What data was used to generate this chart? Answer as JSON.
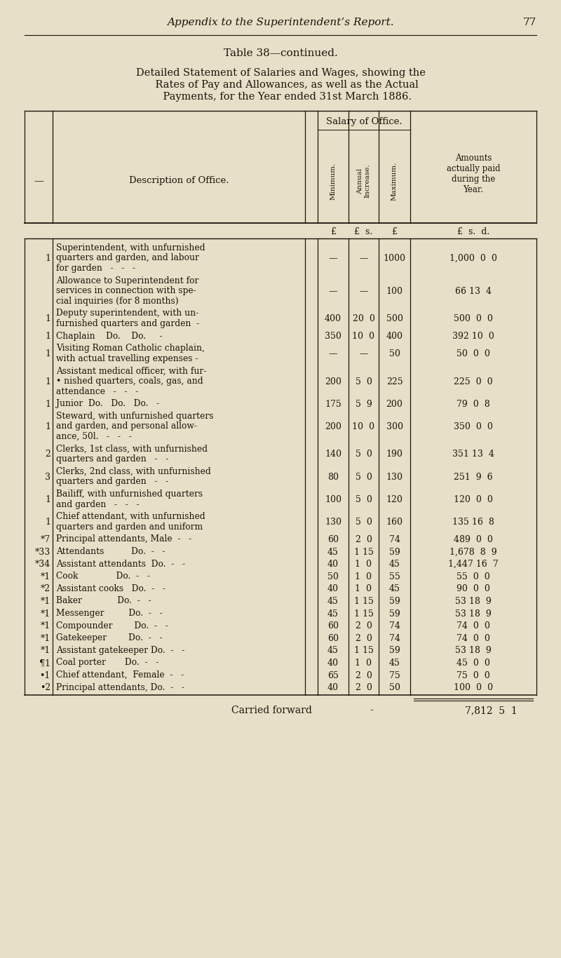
{
  "page_header_italic": "Appendix to the Superintendent’s Report.",
  "page_number": "77",
  "table_label": "Table 38—continued.",
  "subtitle_lines": [
    "Detailed Statement of Salaries and Wages, showing the",
    "    Rates of Pay and Allowances, as well as the Actual",
    "    Payments, for the Year ended 31st March 1886."
  ],
  "rows": [
    {
      "num": "1",
      "desc": [
        "Superintendent, with unfurnished",
        "quarters and garden, and labour",
        "for garden   -   -   -"
      ],
      "min": "—",
      "ann": "—",
      "max": "1000",
      "paid": "1,000  0  0"
    },
    {
      "num": "",
      "desc": [
        "Allowance to Superintendent for",
        "services in connection with spe-",
        "cial inquiries (for 8 months)"
      ],
      "min": "—",
      "ann": "—",
      "max": "100",
      "paid": "66 13  4"
    },
    {
      "num": "1",
      "desc": [
        "Deputy superintendent, with un-",
        "furnished quarters and garden  -"
      ],
      "min": "400",
      "ann": "20  0",
      "max": "500",
      "paid": "500  0  0"
    },
    {
      "num": "1",
      "desc": [
        "Chaplain    Do.    Do.     -"
      ],
      "min": "350",
      "ann": "10  0",
      "max": "400",
      "paid": "392 10  0"
    },
    {
      "num": "1",
      "desc": [
        "Visiting Roman Catholic chaplain,",
        "with actual travelling expenses -"
      ],
      "min": "—",
      "ann": "—",
      "max": "50",
      "paid": "50  0  0"
    },
    {
      "num": "1",
      "desc": [
        "Assistant medical officer, with fur-",
        "• nished quarters, coals, gas, and",
        "attendance   -   -   -"
      ],
      "min": "200",
      "ann": "5  0",
      "max": "225",
      "paid": "225  0  0"
    },
    {
      "num": "1",
      "desc": [
        "Junior  Do.   Do.   Do.   -"
      ],
      "min": "175",
      "ann": "5  9",
      "max": "200",
      "paid": "79  0  8"
    },
    {
      "num": "1",
      "desc": [
        "Steward, with unfurnished quarters",
        "and garden, and personal allow-",
        "ance, 50l.   -   -   -"
      ],
      "min": "200",
      "ann": "10  0",
      "max": "300",
      "paid": "350  0  0"
    },
    {
      "num": "2",
      "desc": [
        "Clerks, 1st class, with unfurnished",
        "quarters and garden   -   -"
      ],
      "min": "140",
      "ann": "5  0",
      "max": "190",
      "paid": "351 13  4"
    },
    {
      "num": "3",
      "desc": [
        "Clerks, 2nd class, with unfurnished",
        "quarters and garden   -   -"
      ],
      "min": "80",
      "ann": "5  0",
      "max": "130",
      "paid": "251  9  6"
    },
    {
      "num": "1",
      "desc": [
        "Bailiff, with unfurnished quarters",
        "and garden   -   -   -"
      ],
      "min": "100",
      "ann": "5  0",
      "max": "120",
      "paid": "120  0  0"
    },
    {
      "num": "1",
      "desc": [
        "Chief attendant, with unfurnished",
        "quarters and garden and uniform"
      ],
      "min": "130",
      "ann": "5  0",
      "max": "160",
      "paid": "135 16  8"
    },
    {
      "num": "*7",
      "desc": [
        "Principal attendants, Male  -   -"
      ],
      "min": "60",
      "ann": "2  0",
      "max": "74",
      "paid": "489  0  0"
    },
    {
      "num": "*33",
      "desc": [
        "Attendants          Do.  -   -"
      ],
      "min": "45",
      "ann": "1 15",
      "max": "59",
      "paid": "1,678  8  9"
    },
    {
      "num": "*34",
      "desc": [
        "Assistant attendants  Do.  -   -"
      ],
      "min": "40",
      "ann": "1  0",
      "max": "45",
      "paid": "1,447 16  7"
    },
    {
      "num": "*1",
      "desc": [
        "Cook              Do.  -   -"
      ],
      "min": "50",
      "ann": "1  0",
      "max": "55",
      "paid": "55  0  0"
    },
    {
      "num": "*2",
      "desc": [
        "Assistant cooks   Do.  -   -"
      ],
      "min": "40",
      "ann": "1  0",
      "max": "45",
      "paid": "90  0  0"
    },
    {
      "num": "*1",
      "desc": [
        "Baker             Do.  -   -"
      ],
      "min": "45",
      "ann": "1 15",
      "max": "59",
      "paid": "53 18  9"
    },
    {
      "num": "*1",
      "desc": [
        "Messenger         Do.  -   -"
      ],
      "min": "45",
      "ann": "1 15",
      "max": "59",
      "paid": "53 18  9"
    },
    {
      "num": "*1",
      "desc": [
        "Compounder        Do.  -   -"
      ],
      "min": "60",
      "ann": "2  0",
      "max": "74",
      "paid": "74  0  0"
    },
    {
      "num": "*1",
      "desc": [
        "Gatekeeper        Do.  -   -"
      ],
      "min": "60",
      "ann": "2  0",
      "max": "74",
      "paid": "74  0  0"
    },
    {
      "num": "*1",
      "desc": [
        "Assistant gatekeeper Do.  -   -"
      ],
      "min": "45",
      "ann": "1 15",
      "max": "59",
      "paid": "53 18  9"
    },
    {
      "num": "¶1",
      "desc": [
        "Coal porter       Do.  -   -"
      ],
      "min": "40",
      "ann": "1  0",
      "max": "45",
      "paid": "45  0  0"
    },
    {
      "num": "•1",
      "desc": [
        "Chief attendant,  Female  -   -"
      ],
      "min": "65",
      "ann": "2  0",
      "max": "75",
      "paid": "75  0  0"
    },
    {
      "num": "•2",
      "desc": [
        "Principal attendants, Do.  -   -"
      ],
      "min": "40",
      "ann": "2  0",
      "max": "50",
      "paid": "100  0  0"
    }
  ],
  "footer_label": "Carried forward",
  "footer_dash": "-",
  "footer_amount": "7,812  5  1",
  "bg_color": "#e8dfc8",
  "text_color": "#1c140a"
}
